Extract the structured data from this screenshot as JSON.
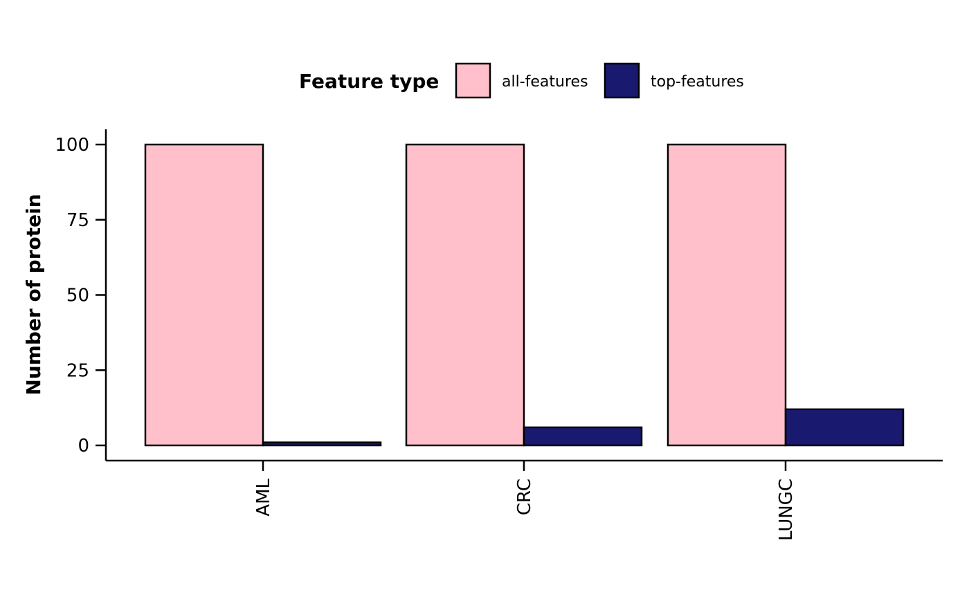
{
  "chart_data": {
    "type": "bar",
    "title": "",
    "xlabel": "",
    "ylabel": "Number of protein",
    "categories": [
      "AML",
      "CRC",
      "LUNGC"
    ],
    "series": [
      {
        "name": "all-features",
        "values": [
          100,
          100,
          100
        ],
        "color": "#FFC0CB"
      },
      {
        "name": "top-features",
        "values": [
          1,
          6,
          12
        ],
        "color": "#191970"
      }
    ],
    "ylim": [
      0,
      100
    ],
    "yticks": [
      "0",
      "25",
      "50",
      "75",
      "100"
    ],
    "legend": {
      "title": "Feature type",
      "position": "top",
      "items": [
        "all-features",
        "top-features"
      ]
    },
    "grid": false,
    "bar_outline_color": "#000000"
  }
}
